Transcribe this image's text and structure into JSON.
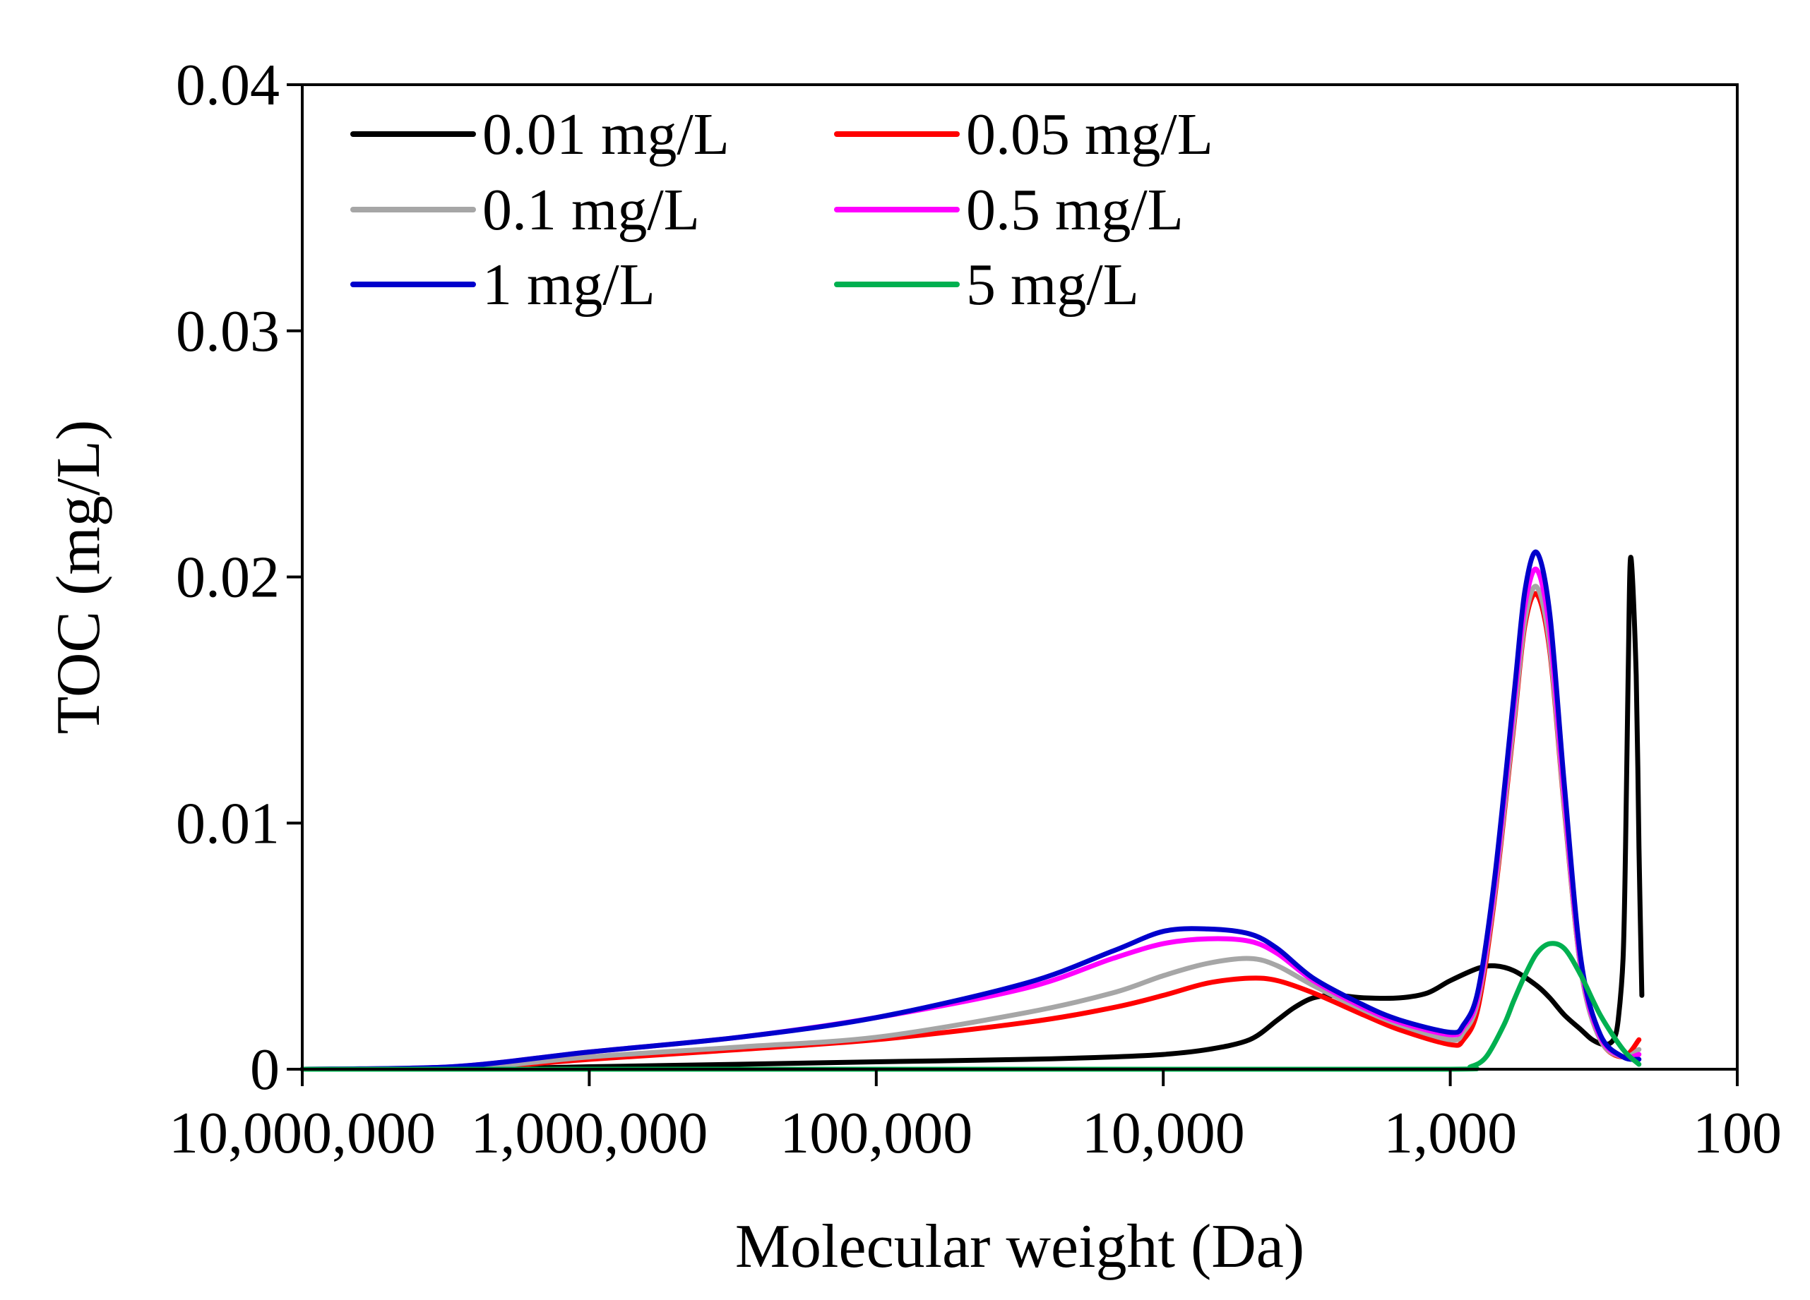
{
  "chart_data": {
    "type": "line",
    "title": "",
    "xlabel": "Molecular weight (Da)",
    "ylabel": "TOC (mg/L)",
    "x_scale": "log",
    "x_reversed": true,
    "xlim": [
      10000000,
      100
    ],
    "ylim": [
      0,
      0.04
    ],
    "x_ticks": [
      {
        "value": 10000000,
        "label": "10,000,000"
      },
      {
        "value": 1000000,
        "label": "1,000,000"
      },
      {
        "value": 100000,
        "label": "100,000"
      },
      {
        "value": 10000,
        "label": "10,000"
      },
      {
        "value": 1000,
        "label": "1,000"
      },
      {
        "value": 100,
        "label": "100"
      }
    ],
    "y_ticks": [
      {
        "value": 0,
        "label": "0"
      },
      {
        "value": 0.01,
        "label": "0.01"
      },
      {
        "value": 0.02,
        "label": "0.02"
      },
      {
        "value": 0.03,
        "label": "0.03"
      },
      {
        "value": 0.04,
        "label": "0.04"
      }
    ],
    "grid": false,
    "legend_position": "top-left",
    "series": [
      {
        "name": "0.01 mg/L",
        "color": "#000000",
        "x": [
          10000000,
          3000000,
          1000000,
          300000,
          100000,
          30000,
          15000,
          10000,
          7000,
          5000,
          4000,
          3500,
          3000,
          2500,
          2000,
          1500,
          1200,
          1000,
          800,
          700,
          600,
          500,
          450,
          400,
          350,
          320,
          290,
          270,
          260,
          250,
          245,
          240,
          235,
          225,
          220,
          215
        ],
        "y": [
          0,
          0,
          0.0001,
          0.0002,
          0.0003,
          0.0004,
          0.0005,
          0.0006,
          0.0008,
          0.0012,
          0.002,
          0.0025,
          0.0029,
          0.003,
          0.0029,
          0.0029,
          0.0031,
          0.0036,
          0.0041,
          0.0042,
          0.004,
          0.0034,
          0.0029,
          0.0022,
          0.0016,
          0.0012,
          0.001,
          0.0012,
          0.002,
          0.0045,
          0.009,
          0.016,
          0.0208,
          0.016,
          0.009,
          0.003
        ]
      },
      {
        "name": "0.05 mg/L",
        "color": "#ff0000",
        "x": [
          10000000,
          3000000,
          1000000,
          300000,
          100000,
          30000,
          15000,
          10000,
          7000,
          5000,
          4000,
          3000,
          2000,
          1500,
          1000,
          900,
          800,
          700,
          600,
          550,
          500,
          450,
          400,
          350,
          300,
          250,
          220
        ],
        "y": [
          0,
          0,
          0.0004,
          0.0008,
          0.0012,
          0.0019,
          0.0025,
          0.003,
          0.0035,
          0.0037,
          0.0036,
          0.0031,
          0.0022,
          0.0016,
          0.001,
          0.0012,
          0.0025,
          0.007,
          0.014,
          0.018,
          0.0193,
          0.017,
          0.0105,
          0.004,
          0.0012,
          0.0005,
          0.0012
        ]
      },
      {
        "name": "0.1 mg/L",
        "color": "#a6a6a6",
        "x": [
          10000000,
          3000000,
          1000000,
          300000,
          100000,
          30000,
          15000,
          10000,
          7000,
          5000,
          4000,
          3000,
          2000,
          1500,
          1000,
          900,
          800,
          700,
          600,
          550,
          500,
          450,
          400,
          350,
          300,
          250,
          220
        ],
        "y": [
          0,
          0,
          0.0005,
          0.0009,
          0.0013,
          0.0023,
          0.0031,
          0.0038,
          0.0043,
          0.0045,
          0.0042,
          0.0034,
          0.0024,
          0.0018,
          0.0012,
          0.0015,
          0.0028,
          0.0072,
          0.0142,
          0.0182,
          0.0196,
          0.0172,
          0.0106,
          0.004,
          0.0012,
          0.0005,
          0.0008
        ]
      },
      {
        "name": "0.5 mg/L",
        "color": "#ff00ff",
        "x": [
          10000000,
          3000000,
          1000000,
          300000,
          100000,
          30000,
          15000,
          10000,
          7000,
          5000,
          4000,
          3000,
          2000,
          1500,
          1000,
          900,
          800,
          700,
          600,
          550,
          500,
          450,
          400,
          350,
          300,
          250,
          220
        ],
        "y": [
          0,
          0.0001,
          0.0007,
          0.0013,
          0.0021,
          0.0033,
          0.0045,
          0.0051,
          0.0053,
          0.0052,
          0.0047,
          0.0036,
          0.0025,
          0.0019,
          0.0014,
          0.0017,
          0.003,
          0.0075,
          0.0148,
          0.0188,
          0.0203,
          0.0178,
          0.011,
          0.0042,
          0.0013,
          0.0005,
          0.0006
        ]
      },
      {
        "name": "1 mg/L",
        "color": "#0000cc",
        "x": [
          10000000,
          3000000,
          1000000,
          300000,
          100000,
          30000,
          15000,
          10000,
          7000,
          5000,
          4000,
          3000,
          2000,
          1500,
          1000,
          900,
          800,
          700,
          600,
          550,
          500,
          450,
          400,
          350,
          300,
          250,
          220
        ],
        "y": [
          0,
          0.0001,
          0.0007,
          0.0013,
          0.0021,
          0.0035,
          0.0048,
          0.0056,
          0.0057,
          0.0055,
          0.0049,
          0.0037,
          0.0026,
          0.002,
          0.0015,
          0.0018,
          0.0032,
          0.0078,
          0.0152,
          0.0194,
          0.021,
          0.0185,
          0.0115,
          0.0044,
          0.0014,
          0.0005,
          0.0004
        ]
      },
      {
        "name": "5 mg/L",
        "color": "#00b050",
        "x": [
          10000000,
          100000,
          10000,
          1000,
          850,
          750,
          650,
          600,
          550,
          500,
          450,
          400,
          350,
          300,
          250,
          220
        ],
        "y": [
          0,
          0,
          0,
          0,
          0.0001,
          0.0005,
          0.0018,
          0.0028,
          0.0038,
          0.0047,
          0.0051,
          0.0049,
          0.0038,
          0.0022,
          0.0008,
          0.0002
        ]
      }
    ]
  }
}
